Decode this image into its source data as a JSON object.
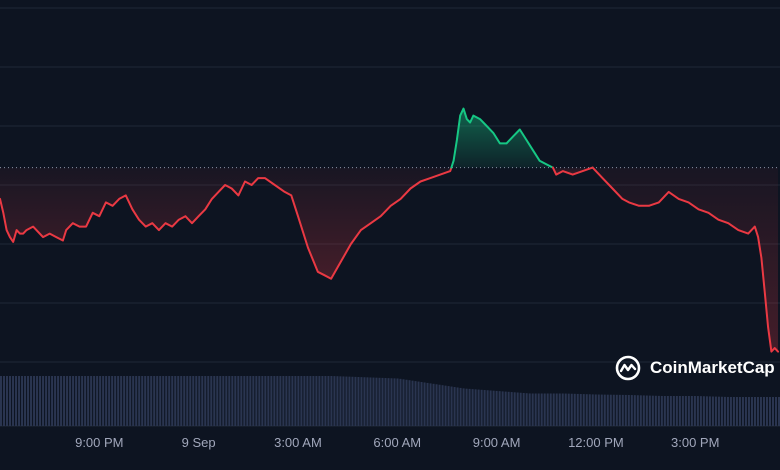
{
  "watermark": {
    "brand": "CoinMarketCap",
    "icon": "coinmarketcap-logo-icon"
  },
  "colors": {
    "background": "#0d1421",
    "grid": "#1f2736",
    "up": "#16c784",
    "down": "#ea3943",
    "volume": "#2a3550",
    "axis_text": "#a1a7bb"
  },
  "chart_data": {
    "type": "line",
    "title": "",
    "xlabel": "",
    "ylabel": "",
    "baseline": 100,
    "ylim": [
      72,
      123
    ],
    "grid": true,
    "x_ticks": [
      "9:00 PM",
      "9 Sep",
      "3:00 AM",
      "6:00 AM",
      "9:00 AM",
      "12:00 PM",
      "3:00 PM"
    ],
    "x_tick_hours": [
      3,
      6,
      9,
      12,
      15,
      18,
      21
    ],
    "x_range_hours": [
      0,
      23.5
    ],
    "series": [
      {
        "x_hours": [
          0,
          0.1,
          0.2,
          0.3,
          0.4,
          0.5,
          0.6,
          0.7,
          0.8,
          1.0,
          1.2,
          1.3,
          1.5,
          1.7,
          1.9,
          2.0,
          2.2,
          2.4,
          2.6,
          2.8,
          3.0,
          3.2,
          3.4,
          3.6,
          3.8,
          4.0,
          4.2,
          4.4,
          4.6,
          4.8,
          5.0,
          5.2,
          5.4,
          5.6,
          5.8,
          6.0,
          6.2,
          6.4,
          6.6,
          6.8,
          7.0,
          7.2,
          7.4,
          7.6,
          7.8,
          8.0,
          8.3,
          8.6,
          8.8,
          9.0,
          9.3,
          9.6,
          9.8,
          10.0,
          10.3,
          10.6,
          10.9,
          11.2,
          11.5,
          11.8,
          12.1,
          12.4,
          12.7,
          13.0,
          13.3,
          13.6,
          13.7,
          13.8,
          13.9,
          14.0,
          14.1,
          14.2,
          14.3,
          14.5,
          14.7,
          14.9,
          15.1,
          15.3,
          15.5,
          15.7,
          15.9,
          16.1,
          16.3,
          16.5,
          16.7,
          16.8,
          17.0,
          17.3,
          17.6,
          17.9,
          18.2,
          18.5,
          18.8,
          19.0,
          19.3,
          19.6,
          19.9,
          20.2,
          20.5,
          20.8,
          21.1,
          21.4,
          21.7,
          22.0,
          22.3,
          22.6,
          22.8,
          22.9,
          23.0,
          23.1,
          23.2,
          23.3,
          23.4,
          23.5
        ],
        "values": [
          95.5,
          93.5,
          91.0,
          90.0,
          89.3,
          91.0,
          90.5,
          90.5,
          91.0,
          91.5,
          90.5,
          90.0,
          90.5,
          90.0,
          89.5,
          91.0,
          92.0,
          91.5,
          91.5,
          93.5,
          93.0,
          95.0,
          94.5,
          95.5,
          96.0,
          94.0,
          92.5,
          91.5,
          92.0,
          91.0,
          92.0,
          91.5,
          92.5,
          93.0,
          92.0,
          93.0,
          94.0,
          95.5,
          96.5,
          97.5,
          97.0,
          96.0,
          98.0,
          97.5,
          98.5,
          98.5,
          97.5,
          96.5,
          96.0,
          93.0,
          88.5,
          85.0,
          84.5,
          84.0,
          86.5,
          89.0,
          91.0,
          92.0,
          93.0,
          94.5,
          95.5,
          97.0,
          98.0,
          98.5,
          99.0,
          99.5,
          101.0,
          104.0,
          107.5,
          108.5,
          107.0,
          106.5,
          107.5,
          107.0,
          106.0,
          105.0,
          103.5,
          103.5,
          104.5,
          105.5,
          104.0,
          102.5,
          101.0,
          100.5,
          100.0,
          99.0,
          99.5,
          99.0,
          99.5,
          100.0,
          98.5,
          97.0,
          95.5,
          95.0,
          94.5,
          94.5,
          95.0,
          96.5,
          95.5,
          95.0,
          94.0,
          93.5,
          92.5,
          92.0,
          91.0,
          90.5,
          91.5,
          90.0,
          87.0,
          82.0,
          77.0,
          73.5,
          74.0,
          73.5
        ]
      }
    ],
    "volume": {
      "x_hours": [
        0,
        2,
        4,
        6,
        8,
        10,
        12,
        13,
        14,
        15,
        16,
        17,
        18,
        19,
        20,
        21,
        22,
        23.5
      ],
      "values": [
        10,
        10,
        10,
        10,
        10,
        10,
        9.5,
        8.5,
        7.5,
        7.0,
        6.5,
        6.5,
        6.3,
        6.2,
        6.0,
        6.0,
        5.8,
        5.8
      ]
    }
  }
}
